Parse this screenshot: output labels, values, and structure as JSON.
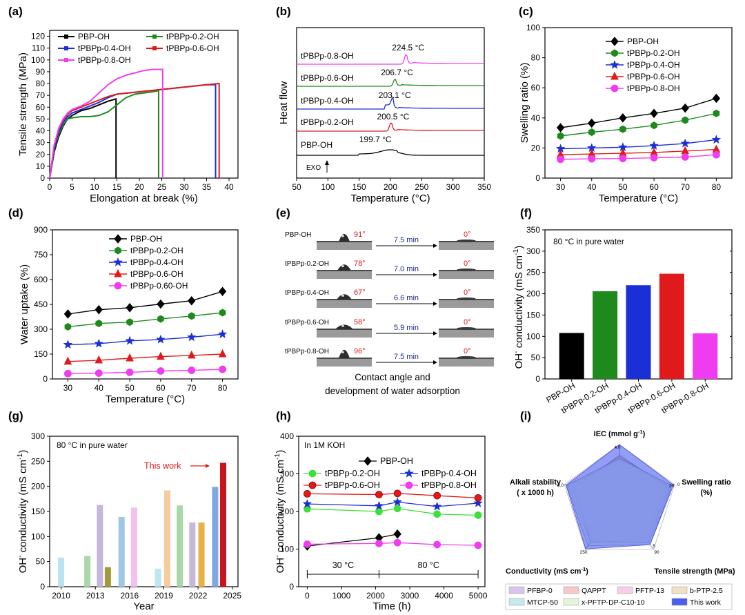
{
  "chart_data": [
    {
      "panel": "(a)",
      "type": "line",
      "xlabel": "Elongation at break (%)",
      "ylabel": "Tensile strength (MPa)",
      "xlim": [
        0,
        42
      ],
      "ylim": [
        0,
        125
      ],
      "xticks": [
        "0",
        "5",
        "10",
        "15",
        "20",
        "25",
        "30",
        "35",
        "40"
      ],
      "yticks": [
        "0",
        "10",
        "20",
        "30",
        "40",
        "50",
        "60",
        "70",
        "80",
        "90",
        "100",
        "110",
        "120"
      ],
      "legend": "top-left, two columns",
      "series": [
        {
          "name": "PBP-OH",
          "color": "#000000",
          "break_at": 14.8,
          "points": [
            [
              0,
              0
            ],
            [
              1,
              22
            ],
            [
              2,
              35
            ],
            [
              3,
              44
            ],
            [
              4,
              50
            ],
            [
              5,
              53
            ],
            [
              7,
              57
            ],
            [
              9,
              59
            ],
            [
              11,
              62
            ],
            [
              13,
              65
            ],
            [
              14.8,
              67
            ],
            [
              14.8,
              0
            ]
          ]
        },
        {
          "name": "tPBPp-0.2-OH",
          "color": "#1e8a1e",
          "break_at": 24.3,
          "points": [
            [
              0,
              0
            ],
            [
              1,
              24
            ],
            [
              2,
              37
            ],
            [
              3,
              45
            ],
            [
              4,
              50
            ],
            [
              5,
              51
            ],
            [
              7,
              52
            ],
            [
              9,
              52
            ],
            [
              11,
              53
            ],
            [
              13,
              56
            ],
            [
              15,
              62
            ],
            [
              17,
              68
            ],
            [
              19,
              71
            ],
            [
              21,
              72
            ],
            [
              23,
              73
            ],
            [
              24.3,
              74
            ],
            [
              24.3,
              0
            ]
          ]
        },
        {
          "name": "tPBPp-0.4-OH",
          "color": "#1a2fd6",
          "break_at": 37.0,
          "points": [
            [
              0,
              0
            ],
            [
              1,
              25
            ],
            [
              2,
              39
            ],
            [
              3,
              47
            ],
            [
              4,
              52
            ],
            [
              5,
              55
            ],
            [
              7,
              58
            ],
            [
              9,
              61
            ],
            [
              11,
              64
            ],
            [
              13,
              68
            ],
            [
              15,
              71
            ],
            [
              20,
              73
            ],
            [
              25,
              75
            ],
            [
              30,
              77
            ],
            [
              35,
              79
            ],
            [
              37,
              79
            ],
            [
              37,
              0
            ]
          ]
        },
        {
          "name": "tPBPp-0.6-OH",
          "color": "#e01a1a",
          "break_at": 37.8,
          "points": [
            [
              0,
              0
            ],
            [
              1,
              27
            ],
            [
              2,
              41
            ],
            [
              3,
              49
            ],
            [
              4,
              54
            ],
            [
              5,
              57
            ],
            [
              7,
              60
            ],
            [
              9,
              63
            ],
            [
              11,
              66
            ],
            [
              13,
              69
            ],
            [
              15,
              71
            ],
            [
              20,
              73
            ],
            [
              25,
              75
            ],
            [
              30,
              77
            ],
            [
              35,
              79
            ],
            [
              37.8,
              80
            ],
            [
              37.8,
              0
            ]
          ]
        },
        {
          "name": "tPBPp-0.8-OH",
          "color": "#f03cf0",
          "break_at": 25.2,
          "points": [
            [
              0,
              0
            ],
            [
              1,
              28
            ],
            [
              2,
              42
            ],
            [
              3,
              50
            ],
            [
              4,
              55
            ],
            [
              5,
              58
            ],
            [
              7,
              61
            ],
            [
              9,
              65
            ],
            [
              11,
              72
            ],
            [
              13,
              79
            ],
            [
              15,
              84
            ],
            [
              17,
              87
            ],
            [
              19,
              89
            ],
            [
              21,
              91
            ],
            [
              23,
              92
            ],
            [
              25.2,
              92
            ],
            [
              25.2,
              0
            ]
          ]
        }
      ]
    },
    {
      "panel": "(b)",
      "type": "line",
      "xlabel": "Temperature (°C)",
      "ylabel": "Heat flow",
      "xlim": [
        50,
        350
      ],
      "xticks": [
        "50",
        "100",
        "150",
        "200",
        "250",
        "300",
        "350"
      ],
      "exo_label": "EXO",
      "series": [
        {
          "name": "tPBPp-0.8-OH",
          "color": "#f03cf0",
          "peak_label": "224.5 °C",
          "peak_x": 224.5,
          "baseline": 0,
          "peak_height": 1.7
        },
        {
          "name": "tPBPp-0.6-OH",
          "color": "#1e8a1e",
          "peak_label": "206.7 °C",
          "peak_x": 206.7,
          "baseline": 0,
          "peak_height": 1.2
        },
        {
          "name": "tPBPp-0.4-OH",
          "color": "#1a2fd6",
          "peak_label": "203.1 °C",
          "peak_x": 203.1,
          "baseline": 0,
          "peak_height": 1.2
        },
        {
          "name": "tPBPp-0.2-OH",
          "color": "#e01a1a",
          "peak_label": "200.5 °C",
          "peak_x": 200.5,
          "baseline": 0,
          "peak_height": 1.5
        },
        {
          "name": "PBP-OH",
          "color": "#000000",
          "peak_label": "199.7 °C",
          "peak_x": 199.7,
          "baseline": 0,
          "peak_height": 0.5
        }
      ]
    },
    {
      "panel": "(c)",
      "type": "line",
      "xlabel": "Temperature (°C)",
      "ylabel": "Swelling ratio (%)",
      "xlim": [
        25,
        85
      ],
      "ylim": [
        0,
        100
      ],
      "xticks": [
        "30",
        "40",
        "50",
        "60",
        "70",
        "80"
      ],
      "yticks": [
        "0",
        "20",
        "40",
        "60",
        "80",
        "100"
      ],
      "x": [
        30,
        40,
        50,
        60,
        70,
        80
      ],
      "legend": "top",
      "series": [
        {
          "name": "PBP-OH",
          "color": "#000000",
          "marker": "diamond",
          "values": [
            33.5,
            36.5,
            40,
            43,
            46.5,
            53
          ]
        },
        {
          "name": "tPBPp-0.2-OH",
          "color": "#1e8a1e",
          "marker": "hexagon",
          "values": [
            28,
            30.5,
            32.5,
            35,
            38.5,
            43
          ]
        },
        {
          "name": "tPBPp-0.4-OH",
          "color": "#1a2fd6",
          "marker": "star",
          "values": [
            19.5,
            20,
            20.5,
            21.5,
            23,
            25.5
          ]
        },
        {
          "name": "tPBPp-0.6-OH",
          "color": "#e01a1a",
          "marker": "triangle",
          "values": [
            15.5,
            16,
            16.5,
            17,
            18,
            19
          ]
        },
        {
          "name": "tPBPp-0.8-OH",
          "color": "#f03cf0",
          "marker": "circle",
          "values": [
            12.5,
            12.8,
            13,
            13.5,
            14,
            15.5
          ]
        }
      ]
    },
    {
      "panel": "(d)",
      "type": "line",
      "xlabel": "Temperature (°C)",
      "ylabel": "Water uptake  (%)",
      "xlim": [
        25,
        85
      ],
      "ylim": [
        0,
        900
      ],
      "xticks": [
        "30",
        "40",
        "50",
        "60",
        "70",
        "80"
      ],
      "yticks": [
        "0",
        "150",
        "300",
        "450",
        "600",
        "750",
        "900"
      ],
      "x": [
        30,
        40,
        50,
        60,
        70,
        80
      ],
      "legend": "top",
      "series": [
        {
          "name": "PBP-OH",
          "color": "#000000",
          "marker": "diamond",
          "values": [
            392,
            418,
            430,
            452,
            472,
            528
          ]
        },
        {
          "name": "tPBPp-0.2-OH",
          "color": "#1e8a1e",
          "marker": "hexagon",
          "values": [
            315,
            335,
            343,
            362,
            380,
            400
          ]
        },
        {
          "name": "tPBPp-0.4-OH",
          "color": "#1a2fd6",
          "marker": "star",
          "values": [
            207,
            213,
            230,
            238,
            252,
            270
          ]
        },
        {
          "name": "tPBPp-0.6-OH",
          "color": "#e01a1a",
          "marker": "triangle",
          "values": [
            105,
            113,
            125,
            135,
            142,
            150
          ]
        },
        {
          "name": "tPBPp-0.60-OH",
          "color": "#f03cf0",
          "marker": "circle",
          "values": [
            32,
            35,
            40,
            48,
            52,
            58
          ]
        }
      ]
    },
    {
      "panel": "(e)",
      "type": "table",
      "caption": "Contact angle and development of water adsorption",
      "rows": [
        {
          "name": "PBP-OH",
          "angle": "91°",
          "time": "7.5 min",
          "final": "0°"
        },
        {
          "name": "tPBPp-0.2-OH",
          "angle": "78°",
          "time": "7.0 min",
          "final": "0°"
        },
        {
          "name": "tPBPp-0.4-OH",
          "angle": "67°",
          "time": "6.6 min",
          "final": "0°"
        },
        {
          "name": "tPBPp-0.6-OH",
          "angle": "58°",
          "time": "5.9 min",
          "final": "0°"
        },
        {
          "name": "tPBPp-0.8-OH",
          "angle": "96°",
          "time": "7.5 min",
          "final": "0°"
        }
      ]
    },
    {
      "panel": "(f)",
      "type": "bar",
      "annotation": "80 °C in pure water",
      "ylabel": "OH- conductivity (mS cm-1)",
      "ylim": [
        0,
        350
      ],
      "yticks": [
        "0",
        "50",
        "100",
        "150",
        "200",
        "250",
        "300",
        "350"
      ],
      "categories": [
        "PBP-OH",
        "tPBPp-0.2-OH",
        "tPBPp-0.4-OH",
        "tPBPp-0.6-OH",
        "tPBPp-0.8-OH"
      ],
      "values": [
        108,
        206,
        220,
        247,
        107
      ],
      "colors": [
        "#000000",
        "#1e8a1e",
        "#1a2fd6",
        "#e01a1a",
        "#f03cf0"
      ]
    },
    {
      "panel": "(g)",
      "type": "bar",
      "annotation": "80 °C in pure water",
      "highlight_label": "This work",
      "xlabel": "Year",
      "ylabel": "OH- conductivity (mS cm-1)",
      "xlim": [
        2009,
        2025.5
      ],
      "ylim": [
        0,
        300
      ],
      "xticks": [
        "2010",
        "2013",
        "2016",
        "2019",
        "2022",
        "2025"
      ],
      "yticks": [
        "0",
        "50",
        "100",
        "150",
        "200",
        "250",
        "300"
      ],
      "bars": [
        {
          "x": 2010,
          "value": 58,
          "color": "#b9e3ee"
        },
        {
          "x": 2012.3,
          "value": 61,
          "color": "#a8d8a8"
        },
        {
          "x": 2013.4,
          "value": 163,
          "color": "#c5b8dc"
        },
        {
          "x": 2014.1,
          "value": 39,
          "color": "#a39a3a"
        },
        {
          "x": 2015.3,
          "value": 139,
          "color": "#9cc8e6"
        },
        {
          "x": 2016.4,
          "value": 158,
          "color": "#f4c0ec"
        },
        {
          "x": 2018.5,
          "value": 36,
          "color": "#bfe6ef"
        },
        {
          "x": 2019.3,
          "value": 192,
          "color": "#f6cc9c"
        },
        {
          "x": 2020.4,
          "value": 162,
          "color": "#a8d8a8"
        },
        {
          "x": 2021.5,
          "value": 128,
          "color": "#c5b8dc"
        },
        {
          "x": 2022.3,
          "value": 128,
          "color": "#e8b248"
        },
        {
          "x": 2023.5,
          "value": 199,
          "color": "#7fa8e0"
        },
        {
          "x": 2024.2,
          "value": 247,
          "color": "#c8141a"
        }
      ]
    },
    {
      "panel": "(h)",
      "type": "line",
      "annotation": "In 1M KOH",
      "xlabel": "Time  (h)",
      "ylabel": "OH- conductivity (mS cm-1)",
      "xlim": [
        -250,
        5200
      ],
      "ylim": [
        0,
        400
      ],
      "xticks": [
        "0",
        "1000",
        "2000",
        "3000",
        "4000",
        "5000"
      ],
      "yticks": [
        "0",
        "100",
        "200",
        "300",
        "400"
      ],
      "temp_labels": [
        "30 °C",
        "80 °C"
      ],
      "temp_change_at": 2100,
      "series": [
        {
          "name": "PBP-OH",
          "color": "#000000",
          "marker": "diamond",
          "points": [
            [
              0,
              108
            ],
            [
              2100,
              130
            ],
            [
              2640,
              140
            ]
          ]
        },
        {
          "name": "tPBPp-0.2-OH",
          "color": "#3ce03c",
          "marker": "circle",
          "points": [
            [
              0,
              207
            ],
            [
              2100,
              200
            ],
            [
              2640,
              208
            ],
            [
              3800,
              193
            ],
            [
              5000,
              190
            ]
          ]
        },
        {
          "name": "tPBPp-0.4-OH",
          "color": "#1a2fd6",
          "marker": "star",
          "points": [
            [
              0,
              220
            ],
            [
              2100,
              215
            ],
            [
              2640,
              225
            ],
            [
              3800,
              213
            ],
            [
              5000,
              222
            ]
          ]
        },
        {
          "name": "tPBPp-0.6-OH",
          "color": "#e01a1a",
          "marker": "circle",
          "points": [
            [
              0,
              247
            ],
            [
              2100,
              245
            ],
            [
              2640,
              248
            ],
            [
              3800,
              242
            ],
            [
              5000,
              236
            ]
          ]
        },
        {
          "name": "tPBPp-0.8-OH",
          "color": "#f03cf0",
          "marker": "circle",
          "points": [
            [
              0,
              113
            ],
            [
              2100,
              115
            ],
            [
              2640,
              117
            ],
            [
              3800,
              112
            ],
            [
              5000,
              110
            ]
          ]
        }
      ]
    },
    {
      "panel": "(i)",
      "type": "radar",
      "axes": [
        {
          "label": "IEC (mmol g-1)",
          "scale_max": "4.0"
        },
        {
          "label": "Swelling ratio (%)",
          "scale_min": "20",
          "scale_max": "0"
        },
        {
          "label": "Tensile strength (MPa)",
          "scale_min": "5",
          "scale_max": "90"
        },
        {
          "label": "Conductivity (mS cm-1)",
          "scale_max": "250"
        },
        {
          "label": "Alkali stability ( x 1000 h)",
          "scale_max": "6.0"
        }
      ],
      "series": [
        {
          "name": "PFBP-0",
          "color": "#d9c4ef",
          "values": [
            0.72,
            0.8,
            0.72,
            0.78,
            0.72
          ]
        },
        {
          "name": "QAPPT",
          "color": "#f7c8c8",
          "values": [
            0.82,
            0.86,
            0.74,
            0.86,
            0.8
          ]
        },
        {
          "name": "PFTP-13",
          "color": "#f8cdec",
          "values": [
            0.78,
            0.9,
            0.8,
            0.84,
            0.83
          ]
        },
        {
          "name": "b-PTP-2.5",
          "color": "#efe0c8",
          "values": [
            0.8,
            0.88,
            0.85,
            0.82,
            0.86
          ]
        },
        {
          "name": "MTCP-50",
          "color": "#c7e8f0",
          "values": [
            0.75,
            0.92,
            0.86,
            0.85,
            0.93
          ]
        },
        {
          "name": "x-PFTP-DP-C10-10",
          "color": "#e6f2da",
          "values": [
            0.76,
            0.95,
            0.9,
            0.92,
            0.96
          ]
        },
        {
          "name": "This work",
          "color": "#4a5ef0",
          "values": [
            1.0,
            0.98,
            0.9,
            0.99,
            0.97
          ]
        }
      ]
    }
  ]
}
